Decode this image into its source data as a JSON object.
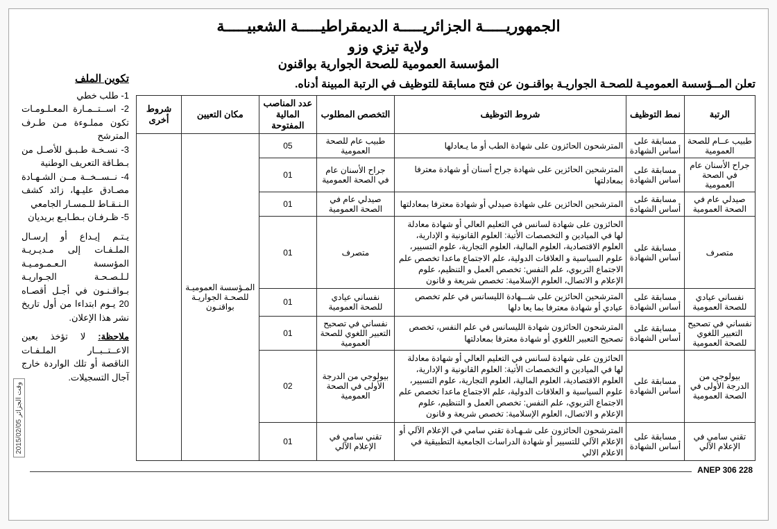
{
  "header": {
    "line1": "الجمهوريـــــة الجزائريـــــة الديمقراطيـــــة الشعبيـــــة",
    "line2": "ولاية تيزي وزو",
    "line3": "المؤسسة العمومية للصحة الجوارية بواقنون"
  },
  "announcement": "تعلن المــؤسسة العموميـة للصحـة الجواريـة بواقنـون عن فتح مسابقة للتوظيف في الرتبة المبينة أدناه.",
  "table": {
    "headers": {
      "rank": "الرتبة",
      "mode": "نمط التوظيف",
      "conditions": "شروط التوظيف",
      "specialty": "التخصص المطلوب",
      "num_posts": "عدد المناصب المالية المفتوحة",
      "place": "مكان التعيين",
      "other": "شروط أخرى"
    },
    "place_value": "المـؤسسة العموميـة للصحـة الجواريـة بواقنـون",
    "rows": [
      {
        "rank": "طبيب عــام للصحة العمومية",
        "mode": "مسابقة على أساس الشهادة",
        "conditions": "المترشحون الحائزون على شهادة الطب أو ما يـعادلها",
        "specialty": "طبيب عام للصحة العمومية",
        "num": "05"
      },
      {
        "rank": "جراح الأسنان عام في الصحة العمومية",
        "mode": "مسابقة على أساس الشهادة",
        "conditions": "المترشحين الحائزين على شهادة جراح أسنان أو شهادة معترفا بمعادلتها",
        "specialty": "جراح الأسنان عام في الصحة العمومية",
        "num": "01"
      },
      {
        "rank": "صيدلي عام في الصحة العمومية",
        "mode": "مسابقة على أساس الشهادة",
        "conditions": "المترشحين الحائزين على شهادة صيدلي أو شهادة معترفا بمعادلتها",
        "specialty": "صيدلي عام في الصحة العمومية",
        "num": "01"
      },
      {
        "rank": "متصرف",
        "mode": "مسابقة على أساس الشهادة",
        "conditions": "الحائزون على شهادة لسانس في التعليم العالي أو شهادة معادلة لها في الميادين و التخصصات الأتية: العلوم القانونية و الإدارية، العلوم الاقتصادية، العلوم المالية، العلوم التجارية، علوم التسيير، علوم السياسية و العلاقات الدولية، علم الاجتماع ماعدا تخصص علم الاجتماع التربوي، علم النفس: تخصص العمل و التنظيم، علوم الإعلام و الاتصال، العلوم الإسلامية: تخصص شريعة و قانون",
        "specialty": "متصرف",
        "num": "01"
      },
      {
        "rank": "نفساني عيادي للصحة العمومية",
        "mode": "مسابقة على أساس الشهادة",
        "conditions": "المترشحين الحائزين على شـــهادة الليسانس في علم تخصص عيادي أو شهادة معترفا بما يعا دلها",
        "specialty": "نفساني عيادي للصحة العمومية",
        "num": "01"
      },
      {
        "rank": "نفساني في تصحيح التعبير اللغوي للصحة العمومية",
        "mode": "مسابقة على أساس الشهادة",
        "conditions": "المترشحون الحائزون شهادة الليسانس في علم النفس، تخصص تصحيح التعبير اللغوي أو شهادة معترفا بمعادلتها",
        "specialty": "نفساني في تصحيح التعبير اللغوي للصحة العمومية",
        "num": "01"
      },
      {
        "rank": "بيولوجي من الدرجة الأولى في الصحة العمومية",
        "mode": "مسابقة على أساس الشهادة",
        "conditions": "الحائزون على شهادة لسانس في التعليم العالي أو شهادة معادلة لها في الميادين و التخصصات الأتية: العلوم القانونية و الإدارية، العلوم الاقتصادية، العلوم المالية، العلوم التجارية، علوم التسيير، علوم السياسية و العلاقات الدولية، علم الاجتماع ماعدا تخصص علم الاجتماع التربوي، علم النفس: تخصص العمل و التنظيم، علوم الإعلام و الاتصال، العلوم الإسلامية: تخصص شريعة و قانون",
        "specialty": "بيولوجي من الدرجة الأولى في الصحة العمومية",
        "num": "02"
      },
      {
        "rank": "تقني سامي في الإعلام الآلي",
        "mode": "مسابقة على أساس الشهادة",
        "conditions": "المترشحون الحائزون على شـهـادة تقني سامي في الإعلام الآلي أو الإعلام الآلي للتسيير أو شهادة الدراسات الجامعية التطبيقية في الاعلام الالي",
        "specialty": "تقني سامي في الإعلام الآلي",
        "num": "01"
      }
    ]
  },
  "side": {
    "title": "تكوين الملف",
    "items": [
      "1- طلب خطي",
      "2- اســتــمـارة المعـلـومـات تكون مملـوءة مـن طـرف المترشح",
      "3- نسـخـة طـبـق للأصـل من بـطـاقة التعريف الوطنية",
      "4- نــســخــة مــن الشـهـادة مصـادق عليـها، زائد كشف الـنـقـاط للـمسـار الجامعي",
      "5- ظـرفـان بـطـابـع بريديان"
    ],
    "deposit": "يـتـم إيـداع أو إرسـال الملـفـات إلى مـديـريـة المؤسسة الـعـمـومـيـة لـلـصـحـة الجـواريـة بـواقـنـون في أجـل أقصـاه 20 يـوم ابتداءا من أول تاريخ نشر هذا الإعلان.",
    "note_label": "ملاحظة:",
    "note": "لا تؤخذ بعين الاعــتــبــار الملـفـات الناقصة أو تلك الواردة خارج آجال التسجيلات."
  },
  "footer": {
    "anep": "ANEP 306 228",
    "stamp": "وقت الجزائر  2015/02/05"
  },
  "style": {
    "border_color": "#2a2a2a",
    "background": "#ffffff"
  }
}
